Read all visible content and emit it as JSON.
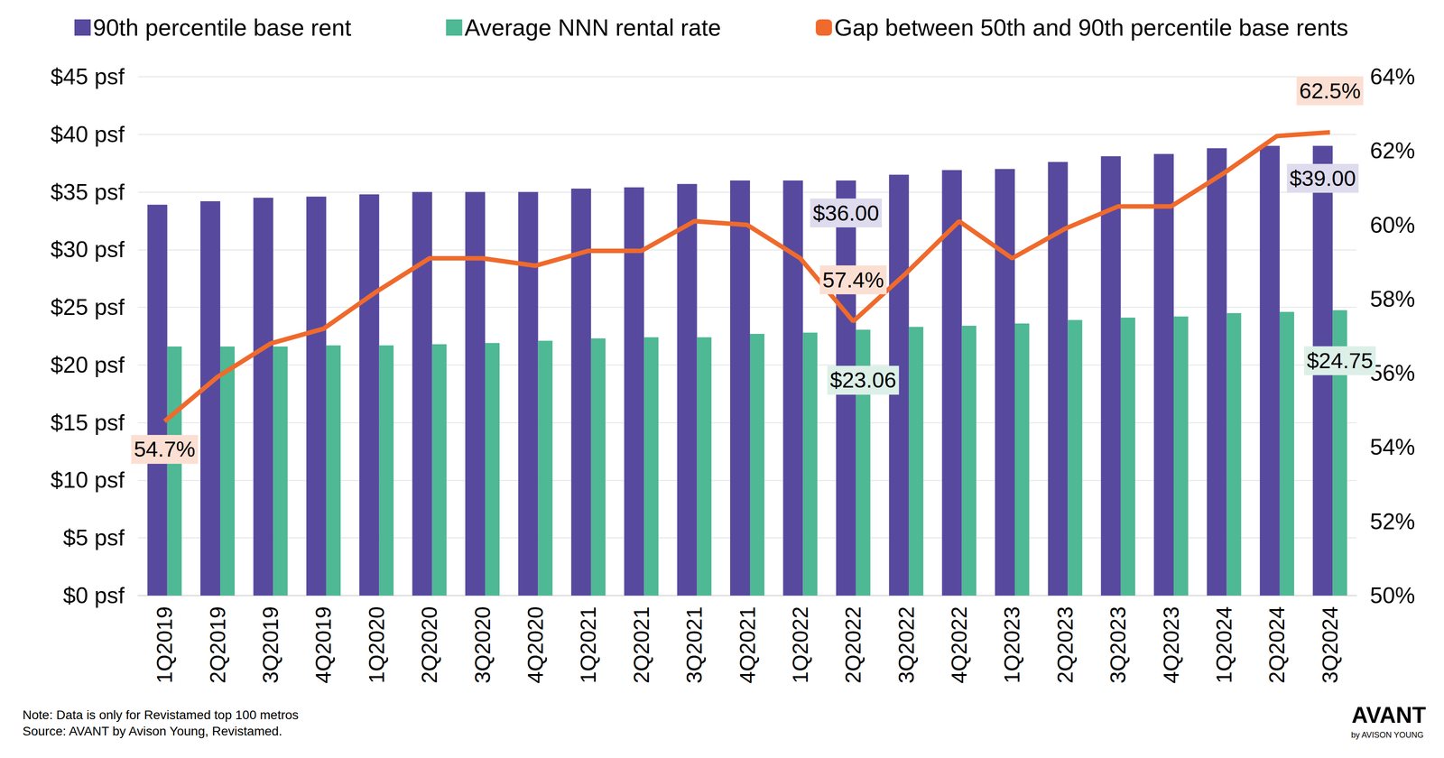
{
  "chart_data": {
    "type": "bar",
    "legend": "top",
    "grid": true,
    "categories": [
      "1Q2019",
      "2Q2019",
      "3Q2019",
      "4Q2019",
      "1Q2020",
      "2Q2020",
      "3Q2020",
      "4Q2020",
      "1Q2021",
      "2Q2021",
      "3Q2021",
      "4Q2021",
      "1Q2022",
      "2Q2022",
      "3Q2022",
      "4Q2022",
      "1Q2023",
      "2Q2023",
      "3Q2023",
      "4Q2023",
      "1Q2024",
      "2Q2024",
      "3Q2024"
    ],
    "ylim": [
      0,
      45
    ],
    "yticks": [
      {
        "value": 0,
        "label": "$0 psf"
      },
      {
        "value": 5,
        "label": "$5 psf"
      },
      {
        "value": 10,
        "label": "$10 psf"
      },
      {
        "value": 15,
        "label": "$15 psf"
      },
      {
        "value": 20,
        "label": "$20 psf"
      },
      {
        "value": 25,
        "label": "$25 psf"
      },
      {
        "value": 30,
        "label": "$30 psf"
      },
      {
        "value": 35,
        "label": "$35 psf"
      },
      {
        "value": 40,
        "label": "$40 psf"
      },
      {
        "value": 45,
        "label": "$45 psf"
      }
    ],
    "y2lim": [
      50,
      64
    ],
    "y2ticks": [
      {
        "value": 50,
        "label": "50%"
      },
      {
        "value": 52,
        "label": "52%"
      },
      {
        "value": 54,
        "label": "54%"
      },
      {
        "value": 56,
        "label": "56%"
      },
      {
        "value": 58,
        "label": "58%"
      },
      {
        "value": 60,
        "label": "60%"
      },
      {
        "value": 62,
        "label": "62%"
      },
      {
        "value": 64,
        "label": "64%"
      }
    ],
    "series": [
      {
        "name": "90th percentile base rent",
        "type": "bar",
        "color": "#574a9e",
        "values": [
          33.9,
          34.2,
          34.5,
          34.6,
          34.8,
          35.0,
          35.0,
          35.0,
          35.3,
          35.4,
          35.7,
          36.0,
          36.0,
          36.0,
          36.5,
          36.9,
          37.0,
          37.6,
          38.1,
          38.3,
          38.8,
          39.0,
          39.0
        ],
        "value_labels": [
          null,
          null,
          null,
          null,
          null,
          null,
          null,
          null,
          null,
          null,
          null,
          null,
          null,
          "$36.00",
          null,
          null,
          null,
          null,
          null,
          null,
          null,
          null,
          "$39.00"
        ]
      },
      {
        "name": "Average NNN rental rate",
        "type": "bar",
        "color": "#4fb894",
        "values": [
          21.6,
          21.6,
          21.6,
          21.7,
          21.7,
          21.8,
          21.9,
          22.1,
          22.3,
          22.4,
          22.4,
          22.7,
          22.8,
          23.06,
          23.3,
          23.4,
          23.6,
          23.9,
          24.1,
          24.2,
          24.5,
          24.6,
          24.75
        ],
        "value_labels": [
          null,
          null,
          null,
          null,
          null,
          null,
          null,
          null,
          null,
          null,
          null,
          null,
          null,
          "$23.06",
          null,
          null,
          null,
          null,
          null,
          null,
          null,
          null,
          "$24.75"
        ]
      },
      {
        "name": "Gap between 50th and 90th percentile base rents",
        "type": "line",
        "axis": "y2",
        "color": "#ef6a2c",
        "values": [
          54.7,
          55.9,
          56.8,
          57.2,
          58.2,
          59.1,
          59.1,
          58.9,
          59.3,
          59.3,
          60.1,
          60.0,
          59.1,
          57.4,
          58.7,
          60.1,
          59.1,
          59.9,
          60.5,
          60.5,
          61.4,
          62.4,
          62.5
        ],
        "value_labels": [
          "54.7%",
          null,
          null,
          null,
          null,
          null,
          null,
          null,
          null,
          null,
          null,
          null,
          null,
          "57.4%",
          null,
          null,
          null,
          null,
          null,
          null,
          null,
          null,
          "62.5%"
        ]
      }
    ],
    "annotations": [
      "Note: Data is only for Revistamed top 100 metros",
      "Source: AVANT by Avison Young, Revistamed."
    ],
    "brand": [
      "AVANT",
      "by AVISON YOUNG"
    ]
  }
}
